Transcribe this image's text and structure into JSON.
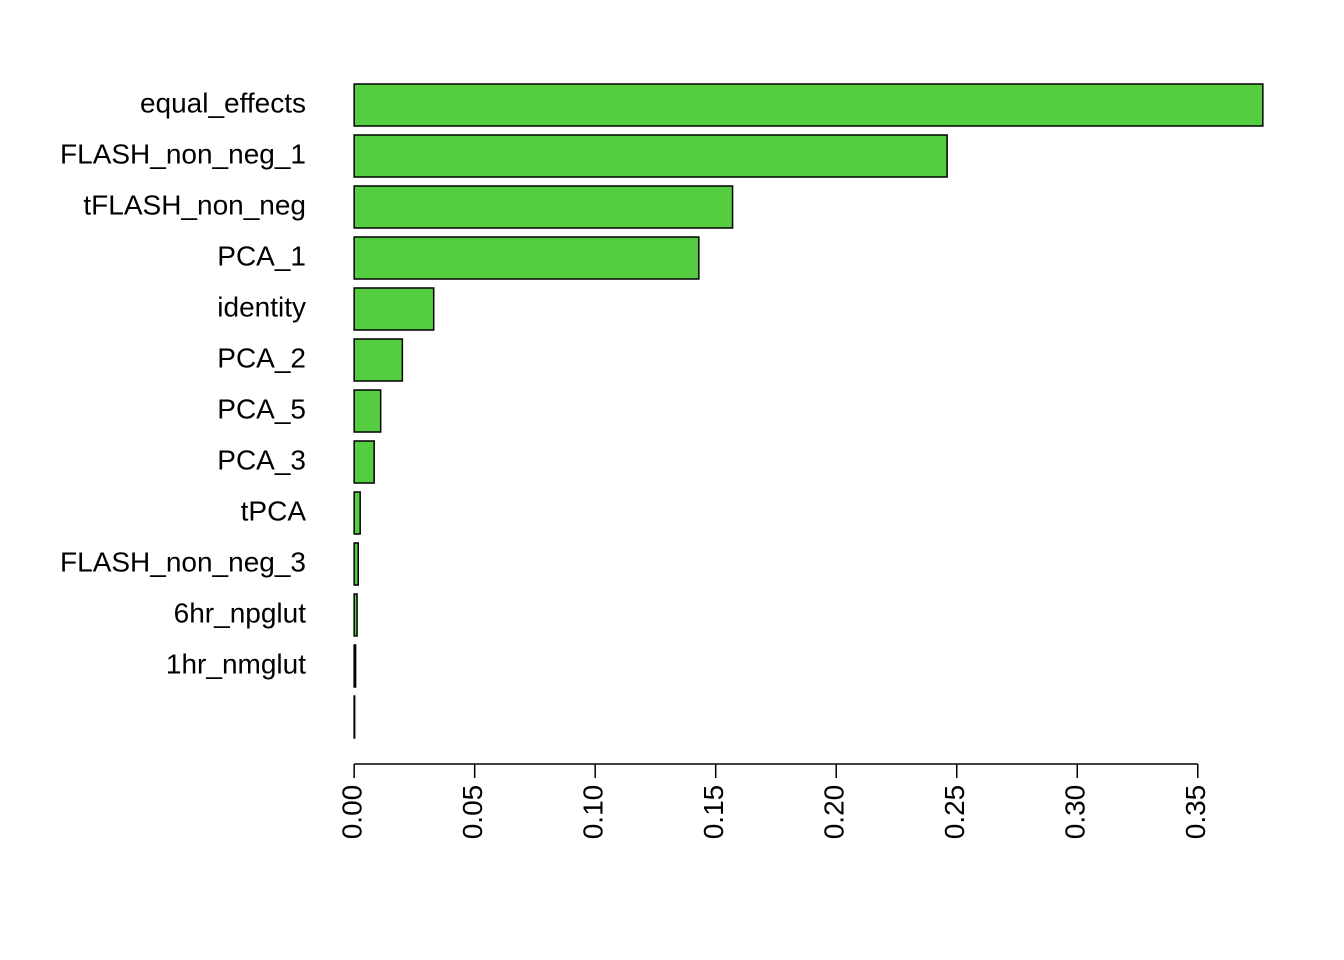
{
  "chart_data": {
    "type": "barh",
    "categories": [
      "equal_effects",
      "FLASH_non_neg_1",
      "tFLASH_non_neg",
      "PCA_1",
      "identity",
      "PCA_2",
      "PCA_5",
      "PCA_3",
      "tPCA",
      "FLASH_non_neg_3",
      "6hr_npglut",
      "1hr_nmglut",
      null
    ],
    "values": [
      0.377,
      0.246,
      0.157,
      0.143,
      0.033,
      0.02,
      0.011,
      0.0083,
      0.0025,
      0.0017,
      0.0012,
      0.0006,
      0.0002
    ],
    "color": "#54cd40",
    "xlim": [
      -0.015,
      0.392
    ],
    "xticks": [
      {
        "value": 0,
        "label": "0.00"
      },
      {
        "value": 0.05,
        "label": "0.05"
      },
      {
        "value": 0.1,
        "label": "0.10"
      },
      {
        "value": 0.15,
        "label": "0.15"
      },
      {
        "value": 0.2,
        "label": "0.20"
      },
      {
        "value": 0.25,
        "label": "0.25"
      },
      {
        "value": 0.3,
        "label": "0.30"
      },
      {
        "value": 0.35,
        "label": "0.35"
      }
    ]
  }
}
